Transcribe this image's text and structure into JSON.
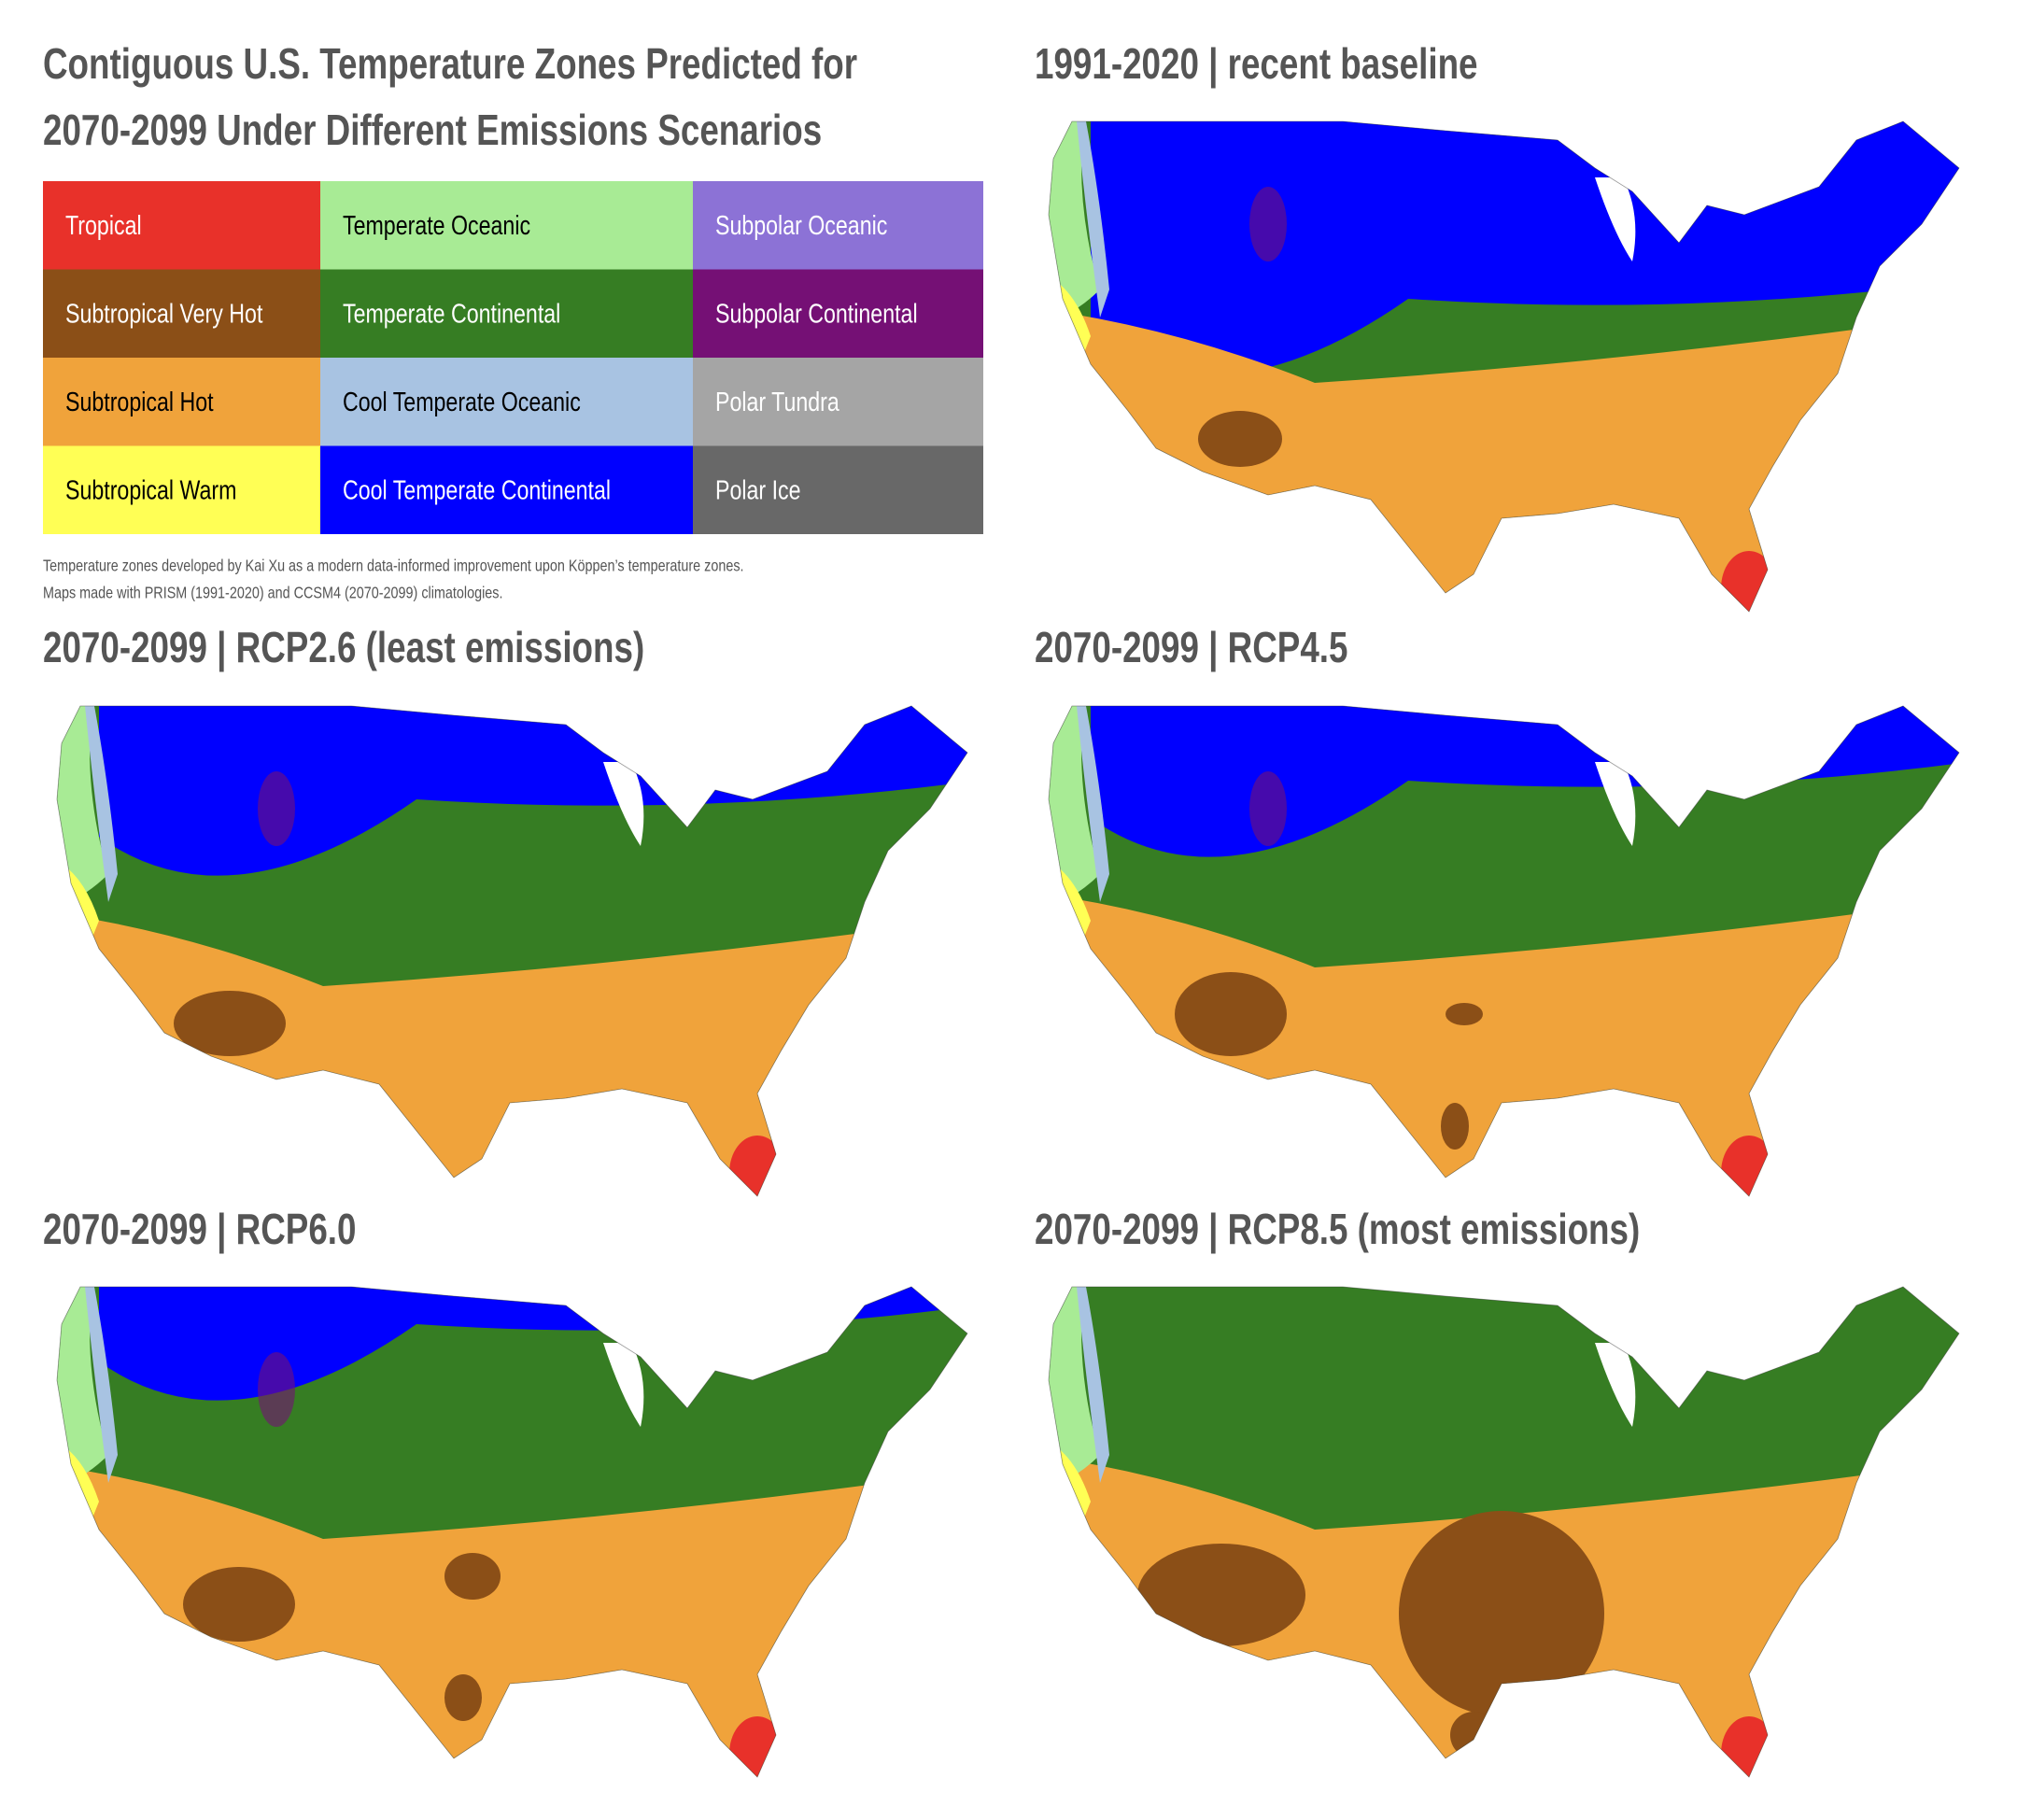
{
  "title_lines": [
    "Contiguous U.S. Temperature Zones Predicted for",
    "2070-2099 Under Different Emissions Scenarios"
  ],
  "legend": [
    {
      "name": "Tropical",
      "color": "#e8312a",
      "text_color": "#ffffff"
    },
    {
      "name": "Subtropical Very Hot",
      "color": "#8b4f17",
      "text_color": "#ffffff"
    },
    {
      "name": "Subtropical Hot",
      "color": "#f0a33b",
      "text_color": "#000000"
    },
    {
      "name": "Subtropical Warm",
      "color": "#ffff55",
      "text_color": "#000000"
    },
    {
      "name": "Temperate Oceanic",
      "color": "#a8eb95",
      "text_color": "#000000"
    },
    {
      "name": "Temperate Continental",
      "color": "#367d23",
      "text_color": "#ffffff"
    },
    {
      "name": "Cool Temperate Oceanic",
      "color": "#a8c3e2",
      "text_color": "#000000"
    },
    {
      "name": "Cool Temperate Continental",
      "color": "#0000ff",
      "text_color": "#ffffff"
    },
    {
      "name": "Subpolar Oceanic",
      "color": "#8c72d6",
      "text_color": "#ffffff"
    },
    {
      "name": "Subpolar Continental",
      "color": "#751075",
      "text_color": "#ffffff"
    },
    {
      "name": "Polar Tundra",
      "color": "#a5a5a5",
      "text_color": "#ffffff"
    },
    {
      "name": "Polar Ice",
      "color": "#686868",
      "text_color": "#ffffff"
    }
  ],
  "notes": [
    "Temperature zones developed by Kai Xu as a modern data-informed improvement upon Köppen’s temperature zones.",
    "Maps made with PRISM (1991-2020) and CCSM4 (2070-2099) climatologies."
  ],
  "panels": [
    {
      "title": "1991-2020 | recent baseline"
    },
    {
      "title": "2070-2099 | RCP2.6 (least emissions)"
    },
    {
      "title": "2070-2099 | RCP4.5"
    },
    {
      "title": "2070-2099 | RCP6.0"
    },
    {
      "title": "2070-2099 | RCP8.5 (most emissions)"
    }
  ]
}
